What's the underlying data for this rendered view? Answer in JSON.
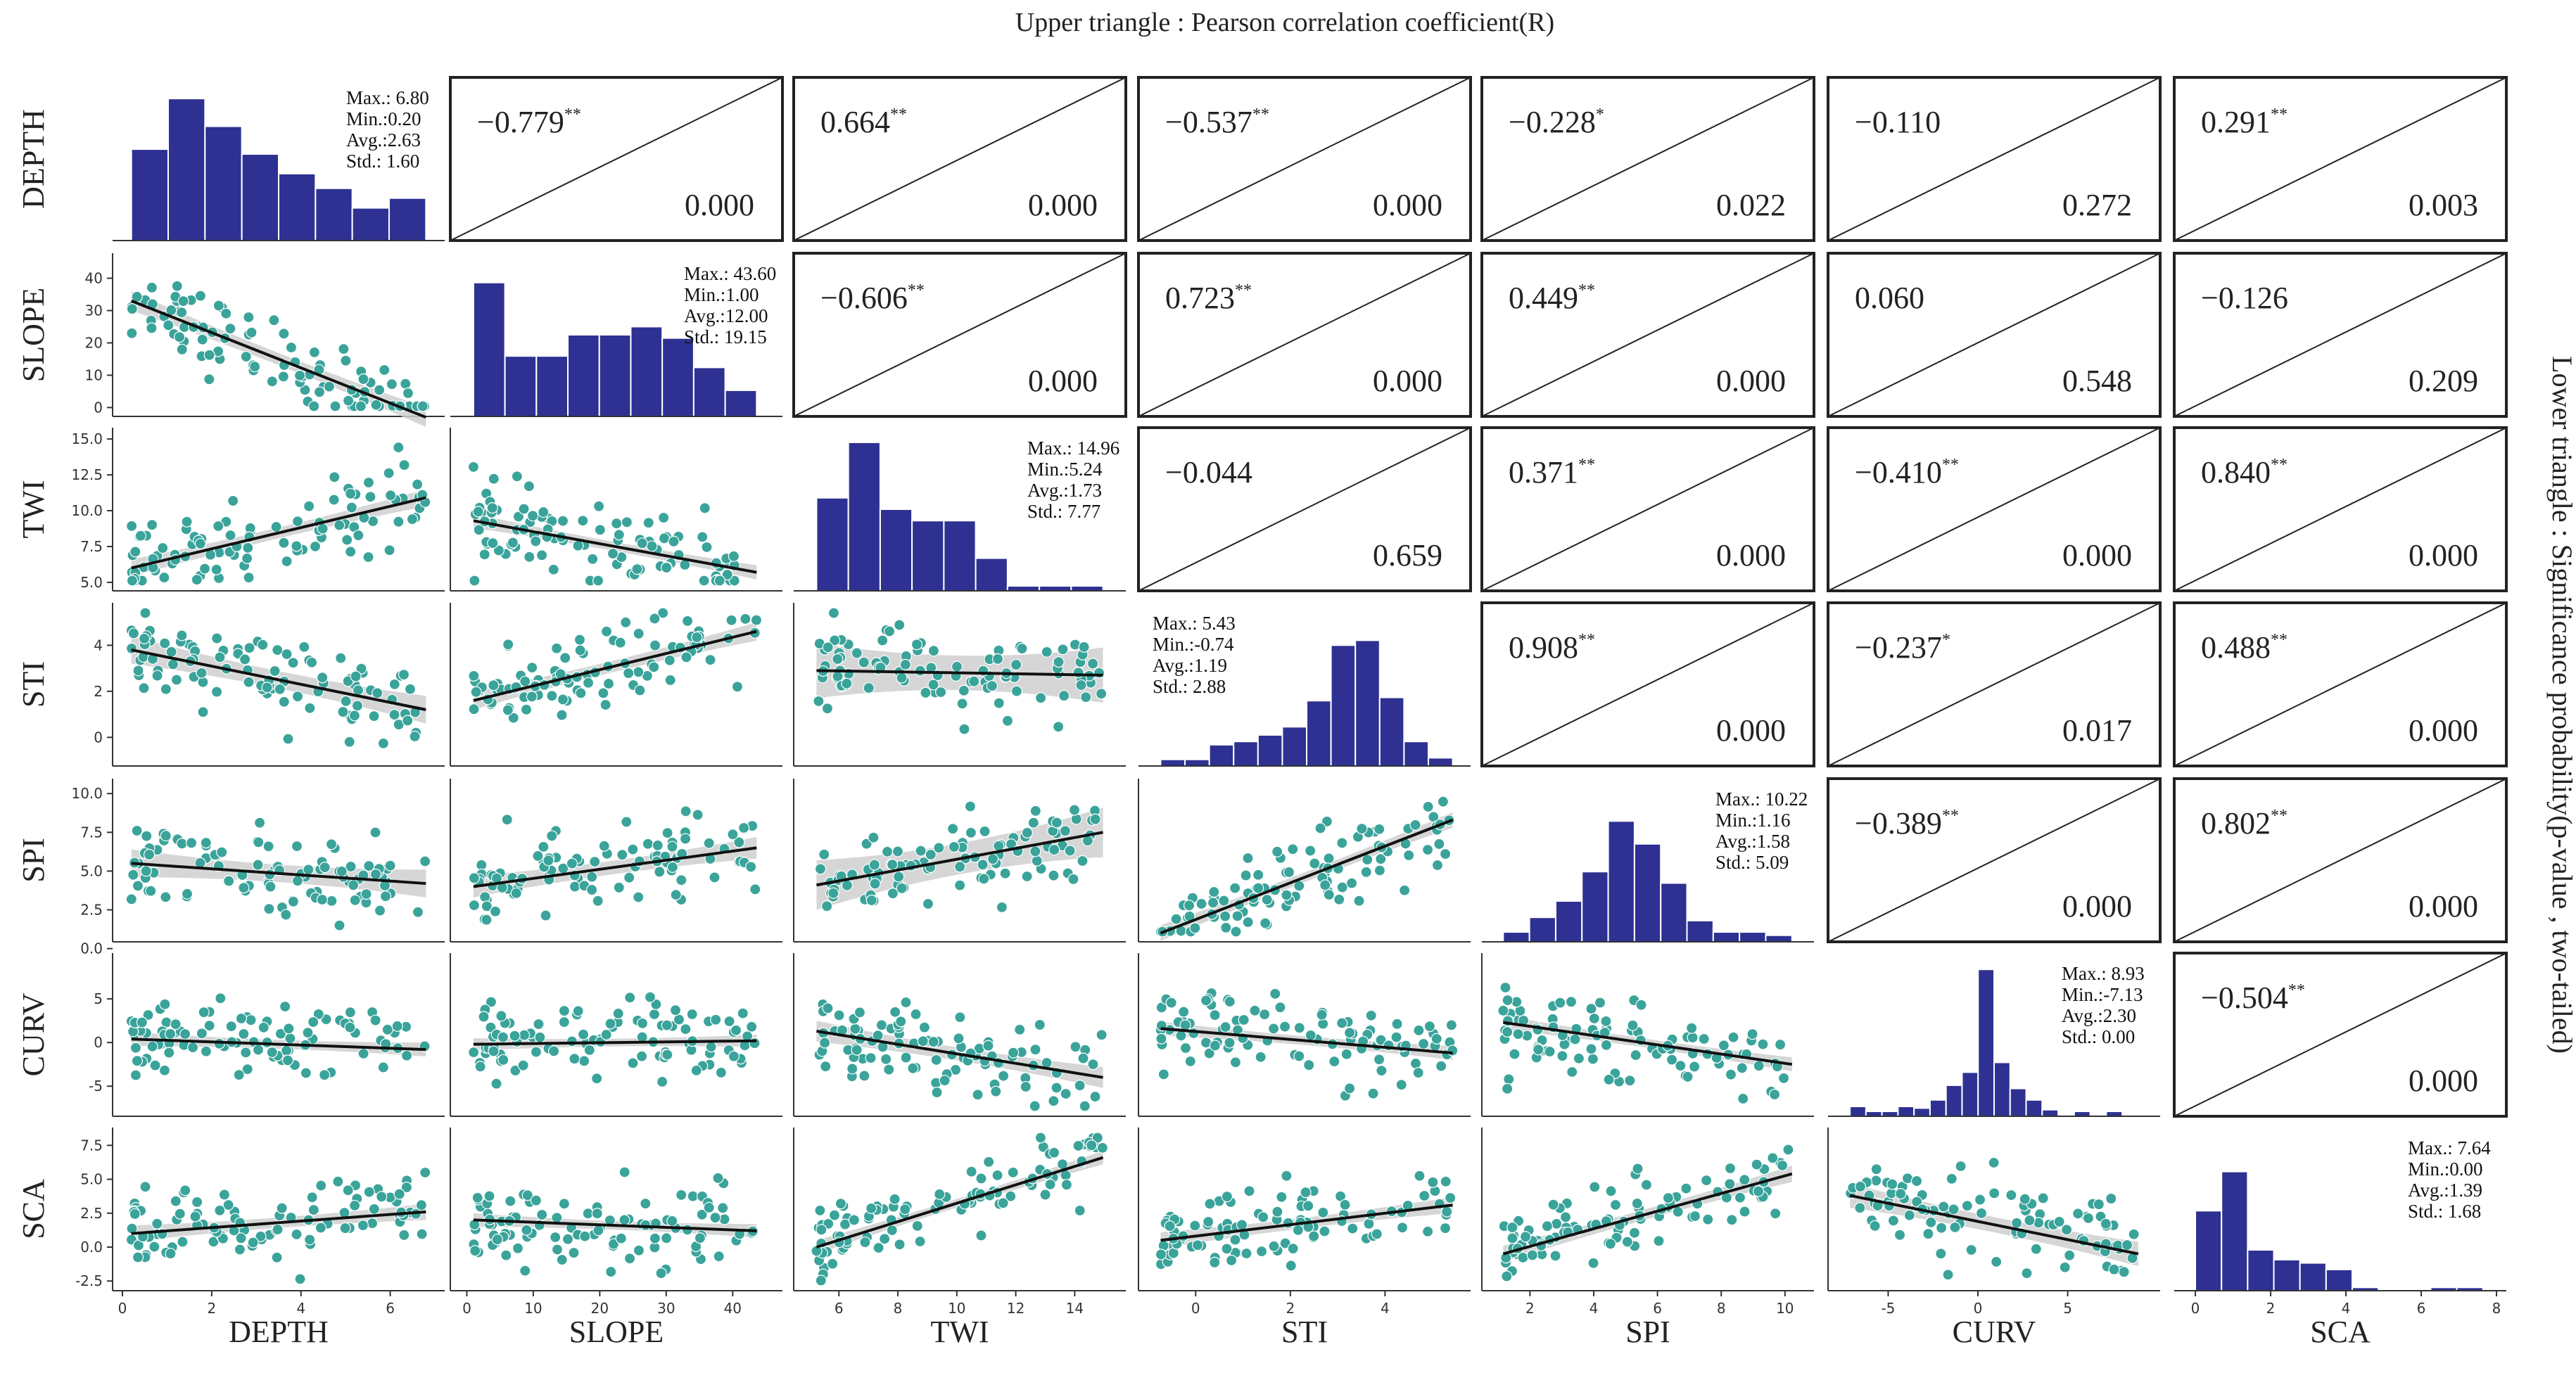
{
  "chart_data": {
    "type": "pairplot",
    "title": "Upper triangle : Pearson correlation coefficient(R)",
    "side_label": "Lower triangle : Significance probability(p-value , two-tailed)",
    "variables": [
      "DEPTH",
      "SLOPE",
      "TWI",
      "STI",
      "SPI",
      "CURV",
      "SCA"
    ],
    "colors": {
      "histogram": "#2e3191",
      "scatter": "#3aa39a",
      "scatter_edge": "#ffffff",
      "regression_line": "#111111",
      "confidence_band": "#cfcfcf",
      "axis": "#333333"
    },
    "axes": {
      "DEPTH": {
        "lim": [
          0,
          7
        ],
        "ticks": [
          "0",
          "2",
          "4",
          "6"
        ],
        "tick_values": [
          0,
          2,
          4,
          6
        ]
      },
      "SLOPE": {
        "lim": [
          -1,
          46
        ],
        "ticks": [
          "0",
          "10",
          "20",
          "30",
          "40"
        ],
        "tick_values": [
          0,
          10,
          20,
          30,
          40
        ]
      },
      "TWI": {
        "lim": [
          4.8,
          15.4
        ],
        "ticks": [
          "6",
          "8",
          "10",
          "12",
          "14"
        ],
        "tick_values": [
          6,
          8,
          10,
          12,
          14
        ],
        "y_ticks": [
          "5.0",
          "7.5",
          "10.0",
          "12.5",
          "15.0"
        ],
        "y_tick_values": [
          5,
          7.5,
          10,
          12.5,
          15
        ]
      },
      "STI": {
        "lim": [
          -1,
          5.6
        ],
        "ticks": [
          "0",
          "2",
          "4"
        ],
        "tick_values": [
          0,
          2,
          4
        ]
      },
      "SPI": {
        "lim": [
          0.8,
          10.6
        ],
        "ticks": [
          "2",
          "4",
          "6",
          "8",
          "10"
        ],
        "tick_values": [
          2,
          4,
          6,
          8,
          10
        ],
        "y_ticks": [
          "0.0",
          "2.5",
          "5.0",
          "7.5",
          "10.0"
        ],
        "y_tick_values": [
          0,
          2.5,
          5,
          7.5,
          10
        ]
      },
      "CURV": {
        "lim": [
          -7.8,
          9.6
        ],
        "ticks": [
          "-5",
          "0",
          "5"
        ],
        "tick_values": [
          -5,
          0,
          5
        ]
      },
      "SCA": {
        "lim": [
          -0.3,
          8
        ],
        "ticks": [
          "0",
          "2",
          "4",
          "6",
          "8"
        ],
        "tick_values": [
          0,
          2,
          4,
          6,
          8
        ],
        "y_ticks": [
          "-2.5",
          "0.0",
          "2.5",
          "5.0",
          "7.5"
        ],
        "y_tick_values": [
          -2.5,
          0,
          2.5,
          5,
          7.5
        ],
        "y_lim": [
          -2.8,
          8.4
        ]
      }
    },
    "stats": [
      {
        "var": "DEPTH",
        "lines": [
          "Max.: 6.80",
          "Min.:0.20",
          "Avg.:2.63",
          "Std.: 1.60"
        ],
        "anchor": "top-right",
        "hist_heights": [
          0.56,
          0.87,
          0.7,
          0.53,
          0.41,
          0.32,
          0.2,
          0.26
        ],
        "hist_range": [
          0.2,
          6.8
        ]
      },
      {
        "var": "SLOPE",
        "lines": [
          "Max.: 43.60",
          "Min.:1.00",
          "Avg.:12.00",
          "Std.: 19.15"
        ],
        "anchor": "top-right",
        "hist_heights": [
          0.82,
          0.37,
          0.37,
          0.5,
          0.5,
          0.55,
          0.48,
          0.3,
          0.16
        ],
        "hist_range": [
          1,
          43.6
        ]
      },
      {
        "var": "TWI",
        "lines": [
          "Max.: 14.96",
          "Min.:5.24",
          "Avg.:1.73",
          "Std.: 7.77"
        ],
        "anchor": "top-right",
        "hist_heights": [
          0.57,
          0.91,
          0.5,
          0.43,
          0.43,
          0.2,
          0.03,
          0.03,
          0.03
        ],
        "hist_range": [
          5.24,
          14.96
        ]
      },
      {
        "var": "STI",
        "lines": [
          "Max.: 5.43",
          "Min.:-0.74",
          "Avg.:1.19",
          "Std.: 2.88"
        ],
        "anchor": "top-left",
        "hist_heights": [
          0.04,
          0.04,
          0.13,
          0.15,
          0.19,
          0.24,
          0.4,
          0.74,
          0.77,
          0.42,
          0.15,
          0.05
        ],
        "hist_range": [
          -0.74,
          5.43
        ]
      },
      {
        "var": "SPI",
        "lines": [
          "Max.: 10.22",
          "Min.:1.16",
          "Avg.:1.58",
          "Std.: 5.09"
        ],
        "anchor": "top-right",
        "hist_heights": [
          0.06,
          0.15,
          0.25,
          0.43,
          0.74,
          0.6,
          0.36,
          0.13,
          0.06,
          0.06,
          0.04
        ],
        "hist_range": [
          1.16,
          10.22
        ]
      },
      {
        "var": "CURV",
        "lines": [
          "Max.: 8.93",
          "Min.:-7.13",
          "Avg.:2.30",
          "Std.: 0.00"
        ],
        "anchor": "top-right",
        "hist_heights": [
          0.06,
          0.03,
          0.03,
          0.06,
          0.05,
          0.1,
          0.19,
          0.27,
          0.9,
          0.33,
          0.17,
          0.1,
          0.04,
          0.0,
          0.03,
          0.0,
          0.03,
          0.0
        ],
        "hist_range": [
          -7.13,
          8.93
        ]
      },
      {
        "var": "SCA",
        "lines": [
          "Max.: 7.64",
          "Min.:0.00",
          "Avg.:1.39",
          "Std.: 1.68"
        ],
        "anchor": "top-right",
        "hist_heights": [
          0.49,
          0.73,
          0.25,
          0.19,
          0.17,
          0.13,
          0.02,
          0.0,
          0.0,
          0.02,
          0.02
        ],
        "hist_range": [
          0,
          7.64
        ]
      }
    ],
    "correlations": [
      {
        "row": 0,
        "col": 1,
        "r": "−0.779",
        "sig": "**",
        "p": "0.000"
      },
      {
        "row": 0,
        "col": 2,
        "r": "0.664",
        "sig": "**",
        "p": "0.000"
      },
      {
        "row": 0,
        "col": 3,
        "r": "−0.537",
        "sig": "**",
        "p": "0.000"
      },
      {
        "row": 0,
        "col": 4,
        "r": "−0.228",
        "sig": "*",
        "p": "0.022"
      },
      {
        "row": 0,
        "col": 5,
        "r": "−0.110",
        "sig": "",
        "p": "0.272"
      },
      {
        "row": 0,
        "col": 6,
        "r": "0.291",
        "sig": "**",
        "p": "0.003"
      },
      {
        "row": 1,
        "col": 2,
        "r": "−0.606",
        "sig": "**",
        "p": "0.000"
      },
      {
        "row": 1,
        "col": 3,
        "r": "0.723",
        "sig": "**",
        "p": "0.000"
      },
      {
        "row": 1,
        "col": 4,
        "r": "0.449",
        "sig": "**",
        "p": "0.000"
      },
      {
        "row": 1,
        "col": 5,
        "r": "0.060",
        "sig": "",
        "p": "0.548"
      },
      {
        "row": 1,
        "col": 6,
        "r": "−0.126",
        "sig": "",
        "p": "0.209"
      },
      {
        "row": 2,
        "col": 3,
        "r": "−0.044",
        "sig": "",
        "p": "0.659"
      },
      {
        "row": 2,
        "col": 4,
        "r": "0.371",
        "sig": "**",
        "p": "0.000"
      },
      {
        "row": 2,
        "col": 5,
        "r": "−0.410",
        "sig": "**",
        "p": "0.000"
      },
      {
        "row": 2,
        "col": 6,
        "r": "0.840",
        "sig": "**",
        "p": "0.000"
      },
      {
        "row": 3,
        "col": 4,
        "r": "0.908",
        "sig": "**",
        "p": "0.000"
      },
      {
        "row": 3,
        "col": 5,
        "r": "−0.237",
        "sig": "*",
        "p": "0.017"
      },
      {
        "row": 3,
        "col": 6,
        "r": "0.488",
        "sig": "**",
        "p": "0.000"
      },
      {
        "row": 4,
        "col": 5,
        "r": "−0.389",
        "sig": "**",
        "p": "0.000"
      },
      {
        "row": 4,
        "col": 6,
        "r": "0.802",
        "sig": "**",
        "p": "0.000"
      },
      {
        "row": 5,
        "col": 6,
        "r": "−0.504",
        "sig": "**",
        "p": "0.000"
      }
    ],
    "regressions": [
      {
        "row": 1,
        "col": 0,
        "x0": 0.2,
        "y0": 33,
        "x1": 6.8,
        "y1": -3,
        "band": 3
      },
      {
        "row": 2,
        "col": 0,
        "x0": 0.2,
        "y0": 6.0,
        "x1": 6.8,
        "y1": 10.9,
        "band": 0.6
      },
      {
        "row": 2,
        "col": 1,
        "x0": 1,
        "y0": 9.3,
        "x1": 43.6,
        "y1": 5.7,
        "band": 0.5
      },
      {
        "row": 3,
        "col": 0,
        "x0": 0.2,
        "y0": 3.8,
        "x1": 6.8,
        "y1": 1.2,
        "band": 0.6
      },
      {
        "row": 3,
        "col": 1,
        "x0": 1,
        "y0": 1.6,
        "x1": 43.6,
        "y1": 4.6,
        "band": 0.4
      },
      {
        "row": 3,
        "col": 2,
        "x0": 5.24,
        "y0": 2.9,
        "x1": 14.96,
        "y1": 2.7,
        "band": 1.2
      },
      {
        "row": 4,
        "col": 0,
        "x0": 0.2,
        "y0": 5.5,
        "x1": 6.8,
        "y1": 4.2,
        "band": 0.9
      },
      {
        "row": 4,
        "col": 1,
        "x0": 1,
        "y0": 4.0,
        "x1": 43.6,
        "y1": 6.5,
        "band": 0.7
      },
      {
        "row": 4,
        "col": 2,
        "x0": 5.24,
        "y0": 4.1,
        "x1": 14.96,
        "y1": 7.5,
        "band": 1.6
      },
      {
        "row": 4,
        "col": 3,
        "x0": -0.74,
        "y0": 1.0,
        "x1": 5.43,
        "y1": 8.3,
        "band": 0.5
      },
      {
        "row": 5,
        "col": 0,
        "x0": 0.2,
        "y0": 0.4,
        "x1": 6.8,
        "y1": -0.8,
        "band": 0.8
      },
      {
        "row": 5,
        "col": 1,
        "x0": 1,
        "y0": -0.2,
        "x1": 43.6,
        "y1": 0.2,
        "band": 0.7
      },
      {
        "row": 5,
        "col": 2,
        "x0": 5.24,
        "y0": 1.3,
        "x1": 14.96,
        "y1": -4.0,
        "band": 1.2
      },
      {
        "row": 5,
        "col": 3,
        "x0": -0.74,
        "y0": 1.6,
        "x1": 5.43,
        "y1": -1.2,
        "band": 0.8
      },
      {
        "row": 5,
        "col": 4,
        "x0": 1.16,
        "y0": 2.3,
        "x1": 10.22,
        "y1": -2.5,
        "band": 0.8
      },
      {
        "row": 6,
        "col": 0,
        "x0": 0.2,
        "y0": 1.0,
        "x1": 6.8,
        "y1": 2.6,
        "band": 0.6
      },
      {
        "row": 6,
        "col": 1,
        "x0": 1,
        "y0": 2.0,
        "x1": 43.6,
        "y1": 1.2,
        "band": 0.5
      },
      {
        "row": 6,
        "col": 2,
        "x0": 5.24,
        "y0": 0.0,
        "x1": 14.96,
        "y1": 6.6,
        "band": 0.5
      },
      {
        "row": 6,
        "col": 3,
        "x0": -0.74,
        "y0": 0.5,
        "x1": 5.43,
        "y1": 3.1,
        "band": 0.6
      },
      {
        "row": 6,
        "col": 4,
        "x0": 1.16,
        "y0": -0.5,
        "x1": 10.22,
        "y1": 5.4,
        "band": 0.6
      },
      {
        "row": 6,
        "col": 5,
        "x0": -7.13,
        "y0": 3.8,
        "x1": 8.93,
        "y1": -0.5,
        "band": 0.9
      }
    ],
    "n_points": 100
  }
}
